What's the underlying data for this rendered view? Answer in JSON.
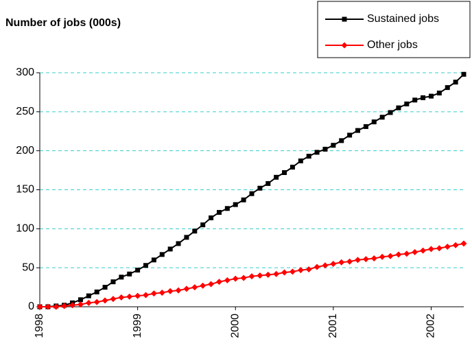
{
  "chart_data": {
    "type": "line",
    "title": "Number of jobs (000s)",
    "categories": [
      "1998",
      null,
      null,
      null,
      null,
      null,
      null,
      null,
      null,
      null,
      null,
      null,
      "1999",
      null,
      null,
      null,
      null,
      null,
      null,
      null,
      null,
      null,
      null,
      null,
      "2000",
      null,
      null,
      null,
      null,
      null,
      null,
      null,
      null,
      null,
      null,
      null,
      "2001",
      null,
      null,
      null,
      null,
      null,
      null,
      null,
      null,
      null,
      null,
      null,
      "2002",
      null,
      null,
      null,
      null
    ],
    "series": [
      {
        "name": "Sustained jobs",
        "color": "#000000",
        "marker": "square",
        "values": [
          0,
          0,
          1,
          2,
          5,
          9,
          14,
          19,
          25,
          32,
          38,
          42,
          47,
          53,
          60,
          67,
          74,
          81,
          89,
          97,
          105,
          114,
          121,
          126,
          131,
          137,
          145,
          152,
          158,
          166,
          172,
          179,
          187,
          193,
          198,
          202,
          207,
          213,
          220,
          226,
          231,
          237,
          243,
          249,
          255,
          260,
          265,
          268,
          270,
          274,
          281,
          288,
          298
        ]
      },
      {
        "name": "Other jobs",
        "color": "#ff0000",
        "marker": "diamond",
        "values": [
          0,
          0,
          0,
          1,
          2,
          3,
          5,
          6,
          8,
          10,
          12,
          13,
          14,
          15,
          17,
          18,
          20,
          21,
          23,
          25,
          27,
          29,
          32,
          34,
          36,
          37,
          39,
          40,
          41,
          42,
          44,
          45,
          47,
          48,
          51,
          53,
          55,
          57,
          58,
          60,
          61,
          62,
          64,
          65,
          67,
          68,
          70,
          72,
          74,
          75,
          77,
          79,
          81
        ]
      }
    ],
    "ylim": [
      0,
      300
    ],
    "yticks": [
      0,
      50,
      100,
      150,
      200,
      250,
      300
    ],
    "grid": true,
    "legend": "top-right"
  }
}
